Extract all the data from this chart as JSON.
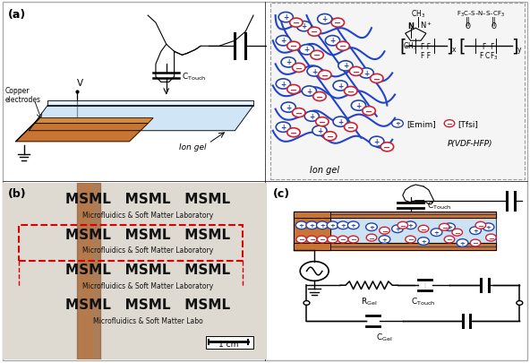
{
  "bg_color": "#ffffff",
  "panel_a_label": "(a)",
  "panel_b_label": "(b)",
  "panel_c_label": "(c)",
  "copper_color": "#c87533",
  "gel_color": "#b8d8f0",
  "ion_blue_color": "#2244aa",
  "ion_red_color": "#cc2233",
  "scale_bar_text": "1 cm",
  "emim_label": "[Emim]",
  "tfsi_label": "[Tfsi]",
  "ion_gel_label": "Ion gel",
  "pvdf_label": "P(VDF-HFP)",
  "copper_label": "Copper\nelectrodes",
  "ion_gel_bottom_label": "Ion gel",
  "c_touch_label": "C$_{\\rm Touch}$",
  "c_gel_label": "C$_{\\rm Gel}$",
  "r_gel_label": "R$_{\\rm Gel}$",
  "v_label": "V",
  "red_dashed_color": "#dd0000",
  "bg_b_color": "#c8c4b8",
  "paper_color": "#dedad2"
}
